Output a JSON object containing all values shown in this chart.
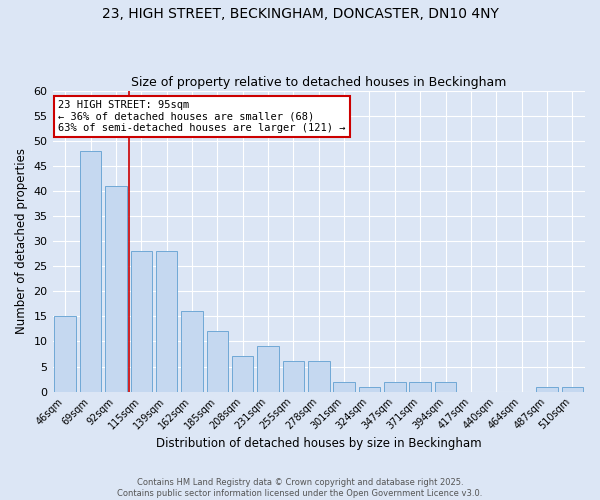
{
  "title1": "23, HIGH STREET, BECKINGHAM, DONCASTER, DN10 4NY",
  "title2": "Size of property relative to detached houses in Beckingham",
  "xlabel": "Distribution of detached houses by size in Beckingham",
  "ylabel": "Number of detached properties",
  "bar_labels": [
    "46sqm",
    "69sqm",
    "92sqm",
    "115sqm",
    "139sqm",
    "162sqm",
    "185sqm",
    "208sqm",
    "231sqm",
    "255sqm",
    "278sqm",
    "301sqm",
    "324sqm",
    "347sqm",
    "371sqm",
    "394sqm",
    "417sqm",
    "440sqm",
    "464sqm",
    "487sqm",
    "510sqm"
  ],
  "bar_values": [
    15,
    48,
    41,
    28,
    28,
    16,
    12,
    7,
    9,
    6,
    6,
    2,
    1,
    2,
    2,
    2,
    0,
    0,
    0,
    1,
    1
  ],
  "bar_color": "#c5d8f0",
  "bar_edge_color": "#6fa8d6",
  "annotation_title": "23 HIGH STREET: 95sqm",
  "annotation_line1": "← 36% of detached houses are smaller (68)",
  "annotation_line2": "63% of semi-detached houses are larger (121) →",
  "annotation_box_color": "#ffffff",
  "annotation_border_color": "#cc0000",
  "vline_x": 2.5,
  "vline_color": "#cc0000",
  "ylim": [
    0,
    60
  ],
  "yticks": [
    0,
    5,
    10,
    15,
    20,
    25,
    30,
    35,
    40,
    45,
    50,
    55,
    60
  ],
  "bg_color": "#dce6f5",
  "grid_color": "#ffffff",
  "footer": "Contains HM Land Registry data © Crown copyright and database right 2025.\nContains public sector information licensed under the Open Government Licence v3.0.",
  "title_fontsize": 10,
  "subtitle_fontsize": 9
}
